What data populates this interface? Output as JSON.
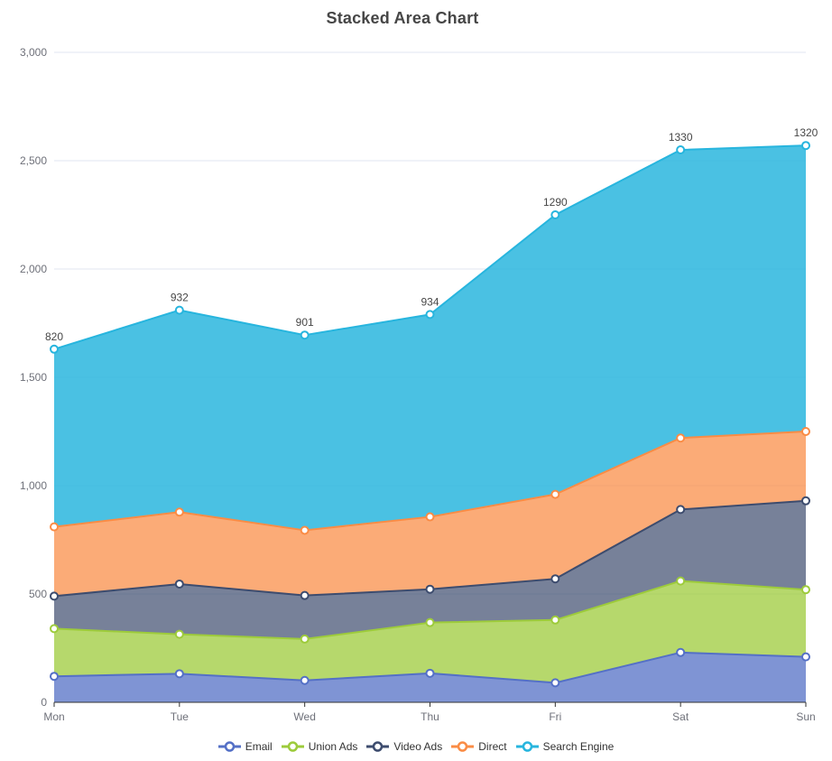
{
  "title": "Stacked Area Chart",
  "background_color": "#ffffff",
  "title_color": "#464646",
  "axis_label_color": "#6E7079",
  "axis_line_color": "#333333",
  "grid_line_color": "#E0E6F1",
  "point_label_color": "#464646",
  "legend_text_color": "#333333",
  "chart_data": {
    "type": "area",
    "stacked": true,
    "title": "Stacked Area Chart",
    "categories": [
      "Mon",
      "Tue",
      "Wed",
      "Thu",
      "Fri",
      "Sat",
      "Sun"
    ],
    "series": [
      {
        "name": "Email",
        "color": "#5470C6",
        "area_opacity": 0.75,
        "values": [
          120,
          132,
          101,
          134,
          90,
          230,
          210
        ]
      },
      {
        "name": "Union Ads",
        "color": "#9DCB3B",
        "area_opacity": 0.75,
        "values": [
          220,
          182,
          191,
          234,
          290,
          330,
          310
        ]
      },
      {
        "name": "Video Ads",
        "color": "#3D4C6E",
        "area_opacity": 0.7,
        "values": [
          150,
          232,
          201,
          154,
          190,
          330,
          410
        ]
      },
      {
        "name": "Direct",
        "color": "#FA8C45",
        "area_opacity": 0.73,
        "values": [
          320,
          332,
          301,
          334,
          390,
          330,
          320
        ]
      },
      {
        "name": "Search Engine",
        "color": "#27B5DE",
        "area_opacity": 0.84,
        "values": [
          820,
          932,
          901,
          934,
          1290,
          1330,
          1320
        ]
      }
    ],
    "labeled_series": "Search Engine",
    "point_labels": [
      "820",
      "932",
      "901",
      "934",
      "1290",
      "1330",
      "1320"
    ],
    "xlabel": "",
    "ylabel": "",
    "ylim": [
      0,
      3000
    ],
    "y_ticks": [
      "0",
      "500",
      "1,000",
      "1,500",
      "2,000",
      "2,500",
      "3,000"
    ],
    "grid": true,
    "legend_position": "bottom",
    "legend_labels": [
      "Email",
      "Union Ads",
      "Video Ads",
      "Direct",
      "Search Engine"
    ]
  }
}
